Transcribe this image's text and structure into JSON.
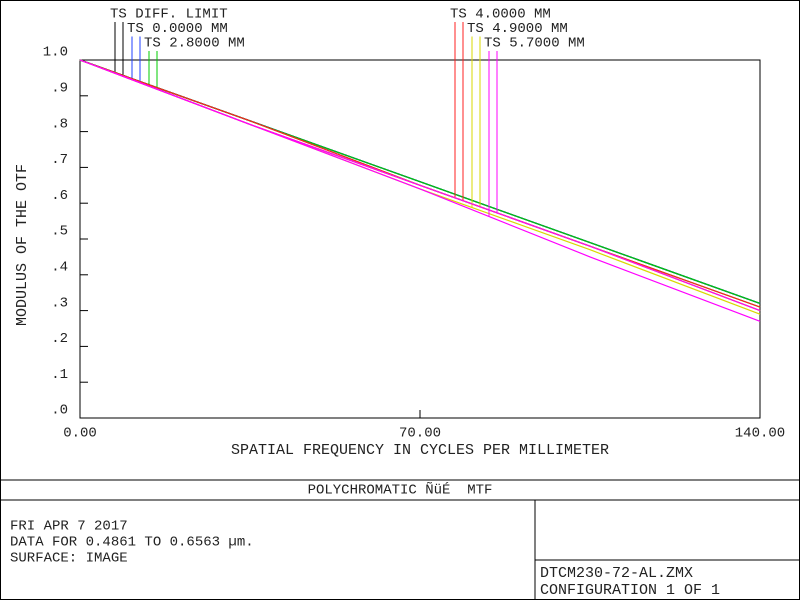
{
  "chart_data": {
    "type": "line",
    "x_label": "SPATIAL FREQUENCY IN CYCLES PER MILLIMETER",
    "y_label": "MODULUS OF THE OTF",
    "x": [
      0,
      35,
      70,
      105,
      140
    ],
    "series": [
      {
        "name": "TS DIFF. LIMIT",
        "color": "#000000",
        "values": [
          1,
          0.83,
          0.66,
          0.49,
          0.32
        ],
        "sagittal": [
          1,
          0.83,
          0.66,
          0.49,
          0.32
        ]
      },
      {
        "name": "TS 0.0000 MM",
        "color": "#2040ff",
        "values": [
          1,
          0.83,
          0.66,
          0.49,
          0.32
        ],
        "sagittal": [
          1,
          0.83,
          0.66,
          0.49,
          0.32
        ]
      },
      {
        "name": "TS 2.8000 MM",
        "color": "#00cc00",
        "values": [
          1,
          0.83,
          0.65,
          0.48,
          0.31
        ],
        "sagittal": [
          1,
          0.83,
          0.66,
          0.49,
          0.32
        ]
      },
      {
        "name": "TS 4.0000 MM",
        "color": "#ff2020",
        "values": [
          1,
          0.82,
          0.65,
          0.48,
          0.3
        ],
        "sagittal": [
          1,
          0.83,
          0.65,
          0.48,
          0.31
        ]
      },
      {
        "name": "TS 4.9000 MM",
        "color": "#d8d800",
        "values": [
          1,
          0.82,
          0.64,
          0.47,
          0.29
        ],
        "sagittal": [
          1,
          0.82,
          0.65,
          0.48,
          0.3
        ]
      },
      {
        "name": "TS 5.7000 MM",
        "color": "#ff00ff",
        "values": [
          1,
          0.82,
          0.64,
          0.45,
          0.27
        ],
        "sagittal": [
          1,
          0.82,
          0.65,
          0.48,
          0.3
        ]
      }
    ],
    "xlim": [
      0,
      140
    ],
    "ylim": [
      0,
      1
    ],
    "xticks": [
      {
        "value": 0,
        "label": "0.00"
      },
      {
        "value": 70,
        "label": "70.00"
      },
      {
        "value": 140,
        "label": "140.00"
      }
    ],
    "yticks": [
      {
        "value": 0,
        "label": ".0"
      },
      {
        "value": 0.1,
        "label": ".1"
      },
      {
        "value": 0.2,
        "label": ".2"
      },
      {
        "value": 0.3,
        "label": ".3"
      },
      {
        "value": 0.4,
        "label": ".4"
      },
      {
        "value": 0.5,
        "label": ".5"
      },
      {
        "value": 0.6,
        "label": ".6"
      },
      {
        "value": 0.7,
        "label": ".7"
      },
      {
        "value": 0.8,
        "label": ".8"
      },
      {
        "value": 0.9,
        "label": ".9"
      },
      {
        "value": 1,
        "label": "1.0"
      }
    ]
  },
  "footer": {
    "title": "POLYCHROMATIC ÑüÉ  MTF",
    "lines": [
      "FRI APR 7 2017",
      "DATA FOR 0.4861 TO 0.6563 µm.",
      "SURFACE: IMAGE"
    ],
    "file": "DTCM230-72-AL.ZMX",
    "config": "CONFIGURATION 1 OF 1"
  }
}
